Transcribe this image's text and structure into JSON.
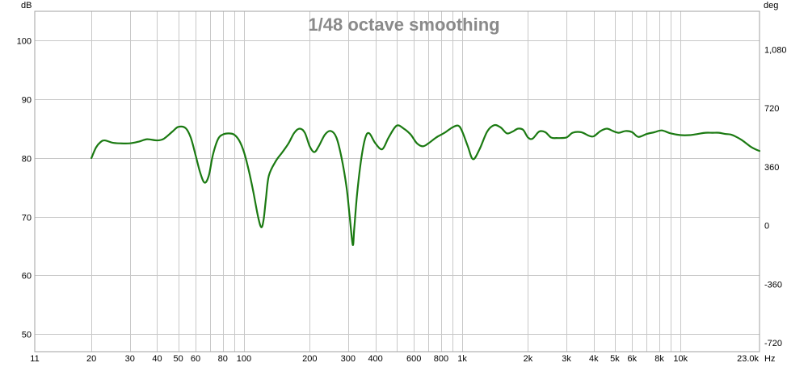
{
  "chart_data": {
    "type": "line",
    "title": "1/48 octave smoothing",
    "x_scale": "log",
    "xlim": [
      11,
      23000
    ],
    "ylim": [
      47,
      105
    ],
    "y2lim": [
      -774,
      1314
    ],
    "grid": true,
    "y_axis_unit": "dB",
    "y2_axis_unit": "deg",
    "x_axis_unit": "Hz",
    "x_ticks": [
      {
        "value": 11,
        "label": "11"
      },
      {
        "value": 20,
        "label": "20"
      },
      {
        "value": 30,
        "label": "30"
      },
      {
        "value": 40,
        "label": "40"
      },
      {
        "value": 50,
        "label": "50"
      },
      {
        "value": 60,
        "label": "60"
      },
      {
        "value": 80,
        "label": "80"
      },
      {
        "value": 100,
        "label": "100"
      },
      {
        "value": 200,
        "label": "200"
      },
      {
        "value": 300,
        "label": "300"
      },
      {
        "value": 400,
        "label": "400"
      },
      {
        "value": 600,
        "label": "600"
      },
      {
        "value": 800,
        "label": "800"
      },
      {
        "value": 1000,
        "label": "1k"
      },
      {
        "value": 2000,
        "label": "2k"
      },
      {
        "value": 3000,
        "label": "3k"
      },
      {
        "value": 4000,
        "label": "4k"
      },
      {
        "value": 5000,
        "label": "5k"
      },
      {
        "value": 6000,
        "label": "6k"
      },
      {
        "value": 8000,
        "label": "8k"
      },
      {
        "value": 10000,
        "label": "10k"
      },
      {
        "value": 23000,
        "label": "23.0k"
      }
    ],
    "x_minor_gridlines": [
      70,
      90,
      500,
      700,
      900,
      7000,
      9000
    ],
    "y_ticks": [
      {
        "value": 50,
        "label": "50"
      },
      {
        "value": 60,
        "label": "60"
      },
      {
        "value": 70,
        "label": "70"
      },
      {
        "value": 80,
        "label": "80"
      },
      {
        "value": 90,
        "label": "90"
      },
      {
        "value": 100,
        "label": "100"
      }
    ],
    "y2_ticks": [
      {
        "value": -720,
        "label": "-720"
      },
      {
        "value": -360,
        "label": "-360"
      },
      {
        "value": 0,
        "label": "0"
      },
      {
        "value": 360,
        "label": "360"
      },
      {
        "value": 720,
        "label": "720"
      },
      {
        "value": 1080,
        "label": "1,080"
      }
    ],
    "series": [
      {
        "color": "#1b7a12",
        "x": [
          20,
          21,
          22,
          23,
          25,
          27,
          30,
          33,
          36,
          40,
          43,
          47,
          50,
          54,
          57,
          60,
          63,
          66,
          69,
          72,
          76,
          80,
          85,
          90,
          95,
          100,
          105,
          110,
          116,
          120,
          123,
          126,
          130,
          140,
          150,
          160,
          170,
          180,
          190,
          200,
          210,
          220,
          235,
          250,
          265,
          280,
          295,
          305,
          315,
          320,
          330,
          345,
          360,
          375,
          400,
          430,
          460,
          500,
          540,
          580,
          620,
          660,
          700,
          760,
          830,
          900,
          960,
          1000,
          1060,
          1120,
          1200,
          1300,
          1400,
          1500,
          1600,
          1700,
          1800,
          1900,
          2000,
          2100,
          2250,
          2400,
          2550,
          2700,
          3000,
          3200,
          3500,
          3800,
          4000,
          4300,
          4600,
          4900,
          5200,
          5600,
          6000,
          6400,
          7000,
          7600,
          8200,
          9000,
          10000,
          11000,
          12000,
          13000,
          14000,
          15000,
          16000,
          17000,
          18000,
          19000,
          20000,
          21000,
          22000,
          23000
        ],
        "y": [
          80.0,
          81.8,
          82.7,
          83.0,
          82.6,
          82.5,
          82.5,
          82.8,
          83.2,
          83.0,
          83.3,
          84.5,
          85.3,
          85.1,
          83.5,
          80.5,
          77.5,
          75.8,
          77.0,
          80.5,
          83.2,
          84.0,
          84.2,
          84.0,
          83.0,
          81.0,
          78.0,
          74.5,
          70.0,
          68.2,
          69.5,
          73.0,
          77.0,
          79.5,
          81.0,
          82.5,
          84.3,
          85.0,
          84.3,
          82.0,
          81.0,
          82.0,
          84.0,
          84.6,
          83.5,
          80.0,
          75.0,
          70.0,
          65.2,
          68.0,
          74.0,
          80.0,
          83.5,
          84.2,
          82.5,
          81.5,
          83.5,
          85.5,
          85.0,
          84.0,
          82.5,
          82.0,
          82.5,
          83.5,
          84.3,
          85.2,
          85.5,
          84.5,
          82.0,
          79.8,
          81.5,
          84.5,
          85.6,
          85.2,
          84.2,
          84.5,
          85.0,
          84.8,
          83.5,
          83.3,
          84.5,
          84.4,
          83.5,
          83.4,
          83.5,
          84.3,
          84.4,
          83.8,
          83.7,
          84.6,
          85.0,
          84.6,
          84.3,
          84.6,
          84.4,
          83.6,
          84.1,
          84.4,
          84.7,
          84.2,
          83.9,
          83.9,
          84.1,
          84.3,
          84.3,
          84.3,
          84.1,
          84.0,
          83.6,
          83.1,
          82.5,
          81.9,
          81.5,
          81.2
        ]
      }
    ]
  }
}
